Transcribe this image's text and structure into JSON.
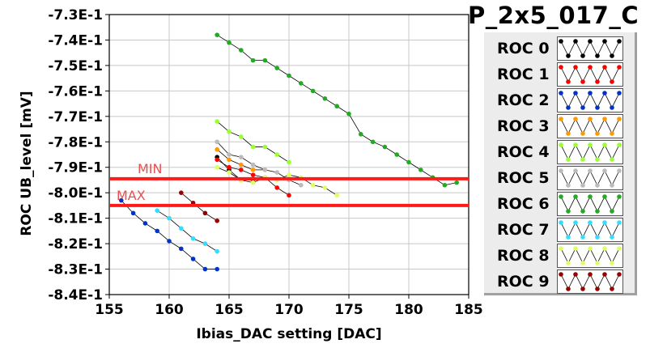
{
  "chart_data": {
    "type": "scatter",
    "title": "P_2x5_017_C",
    "xlabel": "Ibias_DAC setting [DAC]",
    "ylabel": "ROC UB_level [mV]",
    "xlim": [
      155,
      185
    ],
    "ylim": [
      -840,
      -730
    ],
    "xticks": [
      155,
      160,
      165,
      170,
      175,
      180,
      185
    ],
    "xtick_labels": [
      "155",
      "160",
      "165",
      "170",
      "175",
      "180",
      "185"
    ],
    "yticks": [
      -730,
      -740,
      -750,
      -760,
      -770,
      -780,
      -790,
      -800,
      -810,
      -820,
      -830,
      -840
    ],
    "ytick_labels": [
      "-7.3E-1",
      "-7.4E-1",
      "-7.5E-1",
      "-7.6E-1",
      "-7.7E-1",
      "-7.8E-1",
      "-7.9E-1",
      "-8.0E-1",
      "-8.1E-1",
      "-8.2E-1",
      "-8.3E-1",
      "-8.4E-1"
    ],
    "grid": true,
    "legend_position": "right",
    "limits": [
      {
        "label": "MIN",
        "y": -794.5,
        "color": "#ff1a1a"
      },
      {
        "label": "MAX",
        "y": -805,
        "color": "#ff1a1a"
      }
    ],
    "series": [
      {
        "name": "ROC 0",
        "color": "#000000",
        "x": [
          164,
          165,
          166,
          167
        ],
        "y": [
          -786,
          -791,
          -795,
          -795
        ]
      },
      {
        "name": "ROC 1",
        "color": "#ff0000",
        "x": [
          164,
          165,
          166,
          167,
          168,
          169,
          170
        ],
        "y": [
          -787,
          -790,
          -791,
          -793,
          -794,
          -798,
          -801
        ]
      },
      {
        "name": "ROC 2",
        "color": "#0033cc",
        "x": [
          156,
          157,
          158,
          159,
          160,
          161,
          162,
          163,
          164
        ],
        "y": [
          -803,
          -808,
          -812,
          -815,
          -819,
          -822,
          -826,
          -830,
          -830
        ]
      },
      {
        "name": "ROC 3",
        "color": "#ff9900",
        "x": [
          164,
          165,
          166,
          167,
          168
        ],
        "y": [
          -783,
          -787,
          -789,
          -791,
          -791
        ]
      },
      {
        "name": "ROC 4",
        "color": "#99ff33",
        "x": [
          164,
          165,
          166,
          167,
          168,
          169,
          170
        ],
        "y": [
          -772,
          -776,
          -778,
          -782,
          -782,
          -785,
          -788
        ]
      },
      {
        "name": "ROC 5",
        "color": "#bbbbbb",
        "x": [
          164,
          165,
          166,
          167,
          168,
          169,
          170,
          171
        ],
        "y": [
          -780,
          -785,
          -786,
          -789,
          -791,
          -792,
          -795,
          -797
        ]
      },
      {
        "name": "ROC 6",
        "color": "#22aa22",
        "x": [
          164,
          165,
          166,
          167,
          168,
          169,
          170,
          171,
          172,
          173,
          174,
          175,
          176,
          177,
          178,
          179,
          180,
          181,
          182,
          183,
          184
        ],
        "y": [
          -738,
          -741,
          -744,
          -748,
          -748,
          -751,
          -754,
          -757,
          -760,
          -763,
          -766,
          -769,
          -777,
          -780,
          -782,
          -785,
          -788,
          -791,
          -794,
          -797,
          -796
        ]
      },
      {
        "name": "ROC 7",
        "color": "#33ddff",
        "x": [
          159,
          160,
          161,
          162,
          163,
          164
        ],
        "y": [
          -807,
          -810,
          -814,
          -818,
          -820,
          -823
        ]
      },
      {
        "name": "ROC 8",
        "color": "#ddff66",
        "x": [
          164,
          165,
          166,
          167,
          168,
          169,
          170,
          171,
          172,
          173,
          174
        ],
        "y": [
          -790,
          -792,
          -795,
          -796,
          -794,
          -795,
          -793,
          -794,
          -797,
          -798,
          -801
        ]
      },
      {
        "name": "ROC 9",
        "color": "#990000",
        "x": [
          161,
          162,
          163,
          164
        ],
        "y": [
          -800,
          -804,
          -808,
          -811
        ]
      }
    ]
  }
}
